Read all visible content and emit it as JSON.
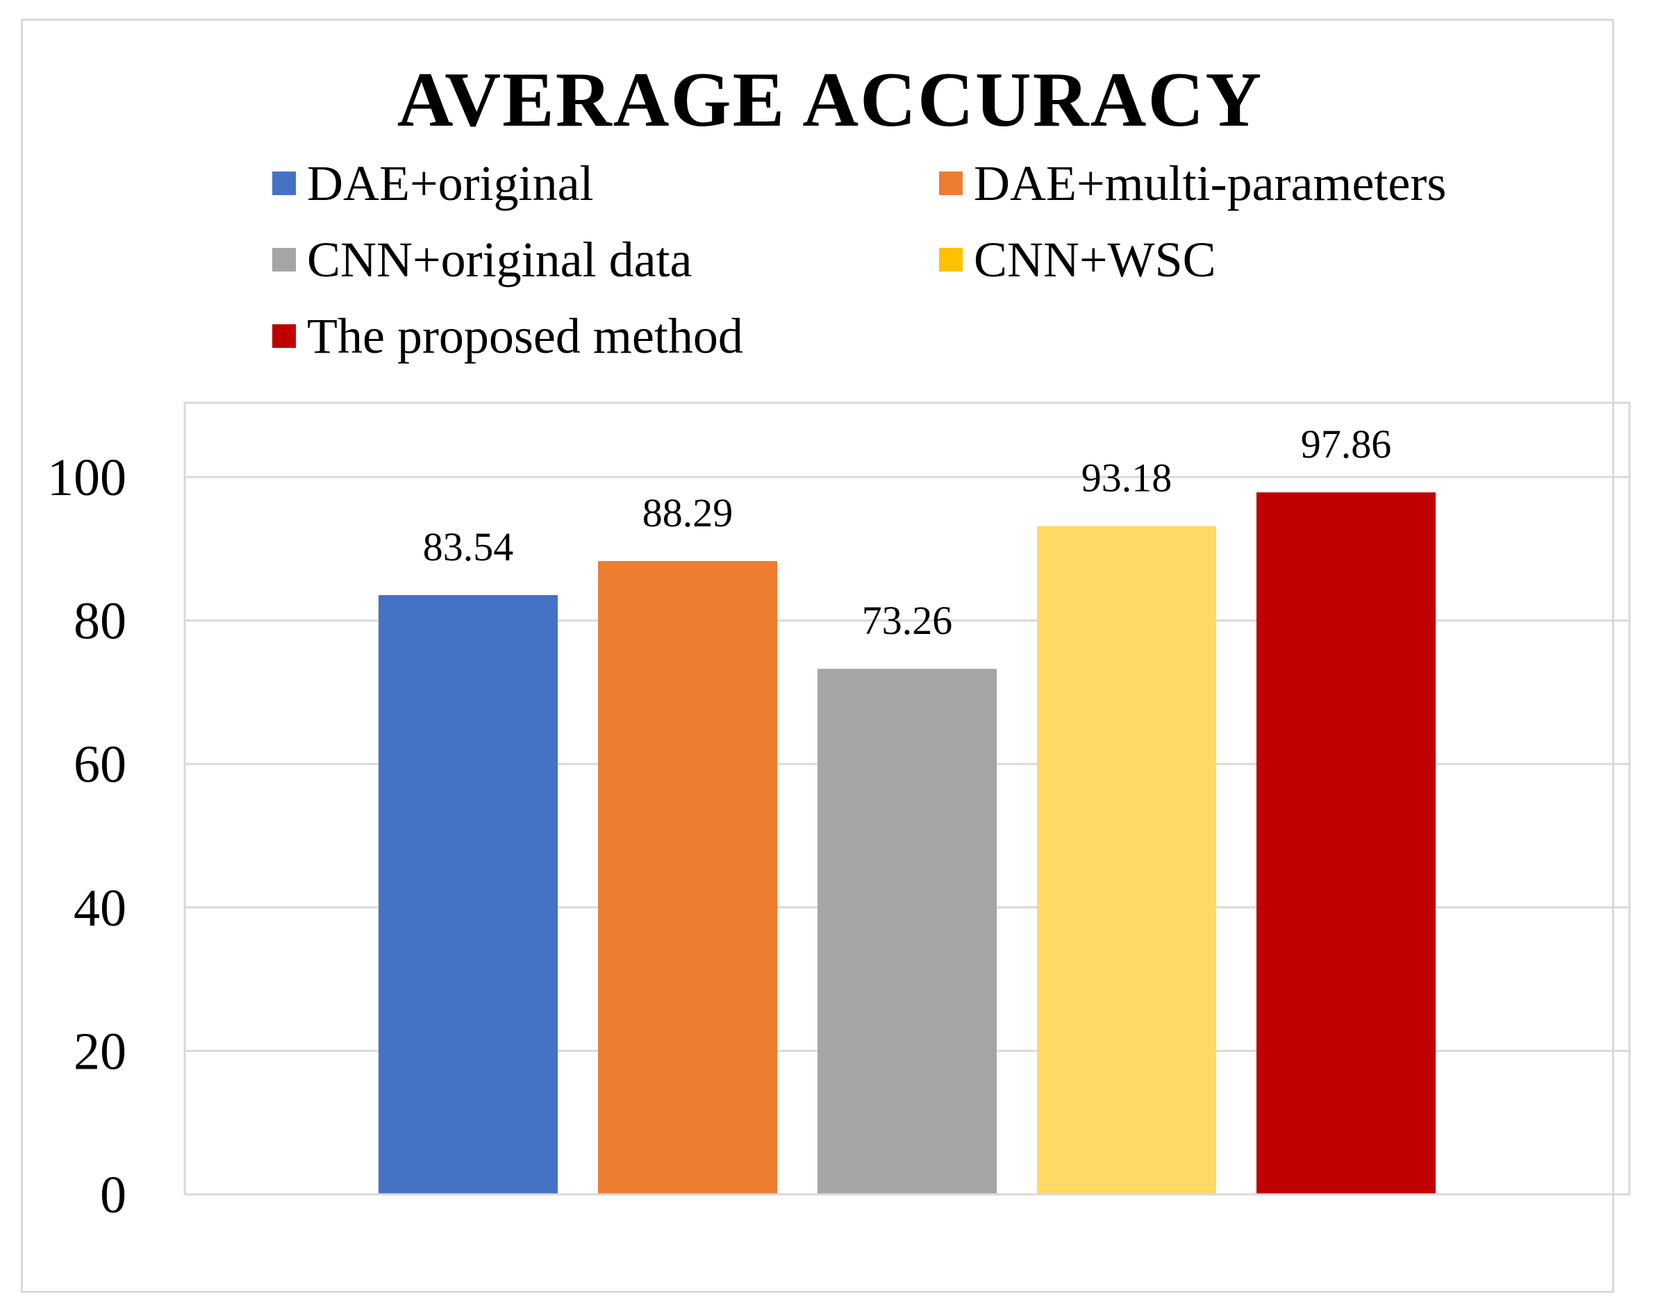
{
  "chart_data": {
    "type": "bar",
    "title": "AVERAGE ACCURACY",
    "xlabel": "",
    "ylabel": "",
    "ylim": [
      0,
      110
    ],
    "yticks": [
      0,
      20,
      40,
      60,
      80,
      100
    ],
    "grid": true,
    "legend_position": "top",
    "series": [
      {
        "name": "DAE+original",
        "value": 83.54,
        "label": "83.54",
        "color": "#4472c4"
      },
      {
        "name": "DAE+multi-parameters",
        "value": 88.29,
        "label": "88.29",
        "color": "#ed7d31"
      },
      {
        "name": "CNN+original data",
        "value": 73.26,
        "label": "73.26",
        "color": "#a5a5a5"
      },
      {
        "name": "CNN+WSC",
        "value": 93.18,
        "label": "93.18",
        "color": "#ffd966",
        "legend_color": "#ffc000"
      },
      {
        "name": "The proposed method",
        "value": 97.86,
        "label": "97.86",
        "color": "#c00000"
      }
    ]
  }
}
